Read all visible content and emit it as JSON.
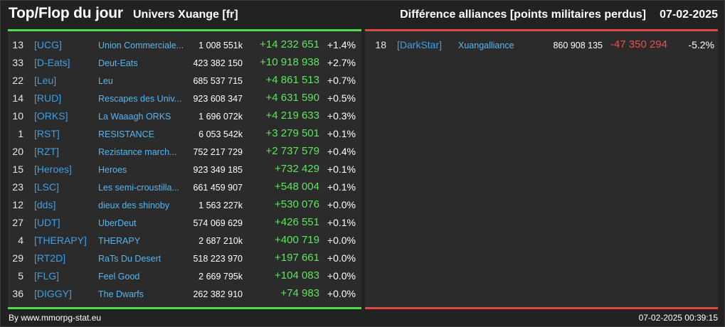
{
  "header": {
    "title": "Top/Flop du jour",
    "universe": "Univers Xuange [fr]",
    "metric": "Différence alliances [points militaires perdus]",
    "date": "07-02-2025"
  },
  "top": [
    {
      "rank": "13",
      "tag": "[UCG]",
      "name": "Union Commerciale...",
      "points": "1 008 551k",
      "delta": "+14 232 651",
      "pct": "+1.4%"
    },
    {
      "rank": "33",
      "tag": "[D-Eats]",
      "name": "Deut-Eats",
      "points": "423 382 150",
      "delta": "+10 918 938",
      "pct": "+2.7%"
    },
    {
      "rank": "22",
      "tag": "[Leu]",
      "name": "Leu",
      "points": "685 537 715",
      "delta": "+4 861 513",
      "pct": "+0.7%"
    },
    {
      "rank": "14",
      "tag": "[RUD]",
      "name": "Rescapes des Univ...",
      "points": "923 608 347",
      "delta": "+4 631 590",
      "pct": "+0.5%"
    },
    {
      "rank": "10",
      "tag": "[ORKS]",
      "name": "La Waaagh ORKS",
      "points": "1 696 072k",
      "delta": "+4 219 633",
      "pct": "+0.3%"
    },
    {
      "rank": "1",
      "tag": "[RST]",
      "name": "RESISTANCE",
      "points": "6 053 542k",
      "delta": "+3 279 501",
      "pct": "+0.1%"
    },
    {
      "rank": "20",
      "tag": "[RZT]",
      "name": "Rezistance march...",
      "points": "752 217 729",
      "delta": "+2 737 579",
      "pct": "+0.4%"
    },
    {
      "rank": "15",
      "tag": "[Heroes]",
      "name": "Heroes",
      "points": "923 349 185",
      "delta": "+732 429",
      "pct": "+0.1%"
    },
    {
      "rank": "23",
      "tag": "[LSC]",
      "name": "Les semi-croustilla...",
      "points": "661 459 907",
      "delta": "+548 004",
      "pct": "+0.1%"
    },
    {
      "rank": "12",
      "tag": "[dds]",
      "name": "dieux des shinoby",
      "points": "1 563 227k",
      "delta": "+530 076",
      "pct": "+0.0%"
    },
    {
      "rank": "27",
      "tag": "[UDT]",
      "name": "UberDeut",
      "points": "574 069 629",
      "delta": "+426 551",
      "pct": "+0.1%"
    },
    {
      "rank": "4",
      "tag": "[THERAPY]",
      "name": "THERAPY",
      "points": "2 687 210k",
      "delta": "+400 719",
      "pct": "+0.0%"
    },
    {
      "rank": "29",
      "tag": "[RT2D]",
      "name": "RaTs Du Desert",
      "points": "518 223 970",
      "delta": "+197 661",
      "pct": "+0.0%"
    },
    {
      "rank": "5",
      "tag": "[FLG]",
      "name": "Feel Good",
      "points": "2 669 795k",
      "delta": "+104 083",
      "pct": "+0.0%"
    },
    {
      "rank": "36",
      "tag": "[DIGGY]",
      "name": "The Dwarfs",
      "points": "262 382 910",
      "delta": "+74 983",
      "pct": "+0.0%"
    }
  ],
  "flop": [
    {
      "rank": "18",
      "tag": "[DarkStar]",
      "name": "Xuangalliance",
      "points": "860 908 135",
      "delta": "-47 350 294",
      "pct": "-5.2%"
    }
  ],
  "footer": {
    "credit": "By www.mmorpg-stat.eu",
    "timestamp": "07-02-2025 00:39:15"
  },
  "colors": {
    "top_accent": "#4cdc4c",
    "flop_accent": "#e04848",
    "tag_blue": "#3aa0e8",
    "positive": "#5ce65c",
    "negative": "#e85050"
  }
}
